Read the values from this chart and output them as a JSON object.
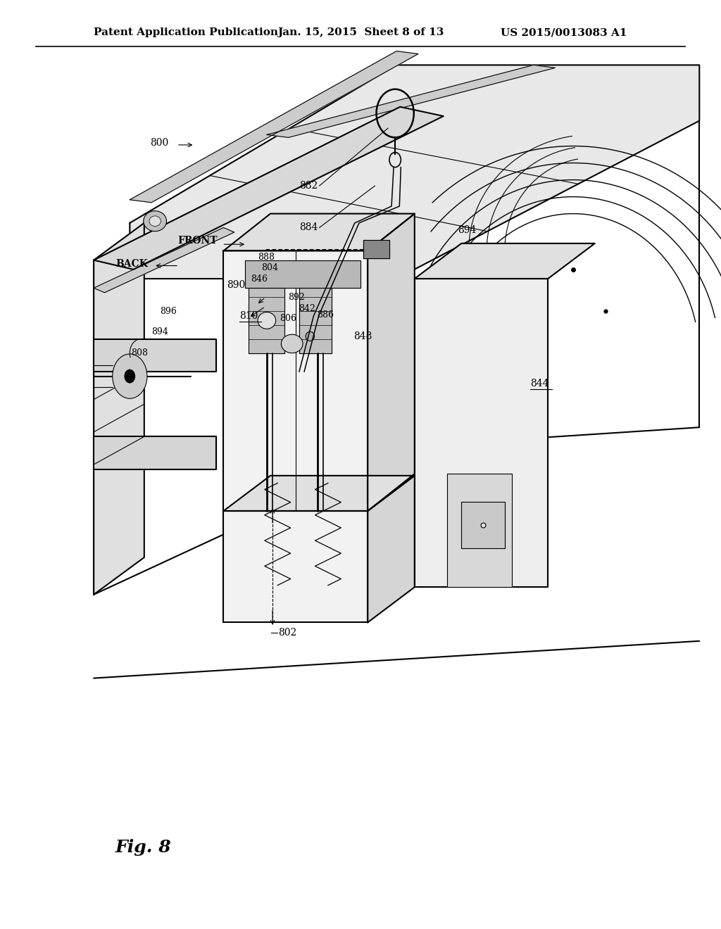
{
  "title_left": "Patent Application Publication",
  "title_center": "Jan. 15, 2015  Sheet 8 of 13",
  "title_right": "US 2015/0013083 A1",
  "fig_label": "Fig. 8",
  "background_color": "#ffffff",
  "line_color": "#000000",
  "header_fontsize": 11,
  "fig_label_fontsize": 18,
  "label_fontsize": 10,
  "small_label_fontsize": 9
}
